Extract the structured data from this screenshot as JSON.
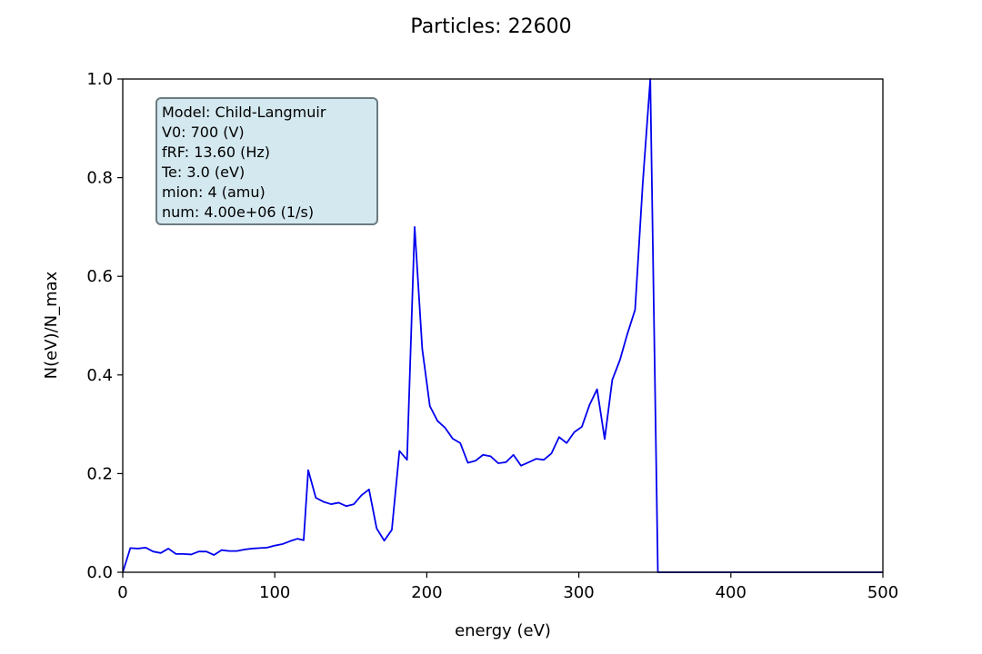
{
  "chart_data": {
    "type": "line",
    "title": "Particles: 22600",
    "xlabel": "energy (eV)",
    "ylabel": "N(eV)/N_max",
    "xlim": [
      0,
      500
    ],
    "ylim": [
      0.0,
      1.0
    ],
    "xticks": [
      0,
      100,
      200,
      300,
      400,
      500
    ],
    "xtick_labels": [
      "0",
      "100",
      "200",
      "300",
      "400",
      "500"
    ],
    "yticks": [
      0.0,
      0.2,
      0.4,
      0.6,
      0.8,
      1.0
    ],
    "ytick_labels": [
      "0.0",
      "0.2",
      "0.4",
      "0.6",
      "0.8",
      "1.0"
    ],
    "grid": false,
    "series": [
      {
        "color": "#0000ee",
        "x": [
          0,
          5,
          10,
          15,
          20,
          25,
          30,
          35,
          40,
          45,
          50,
          55,
          60,
          65,
          70,
          75,
          80,
          85,
          90,
          95,
          100,
          105,
          110,
          115,
          119,
          122,
          127,
          132,
          137,
          142,
          147,
          152,
          157,
          162,
          167,
          172,
          177,
          182,
          187,
          192,
          197,
          202,
          207,
          212,
          217,
          222,
          227,
          232,
          237,
          242,
          247,
          252,
          257,
          262,
          267,
          272,
          277,
          282,
          287,
          292,
          297,
          302,
          307,
          312,
          317,
          322,
          327,
          332,
          337,
          342,
          347,
          352,
          357,
          400,
          450,
          500
        ],
        "y": [
          0.0,
          0.049,
          0.048,
          0.05,
          0.042,
          0.039,
          0.048,
          0.037,
          0.037,
          0.036,
          0.042,
          0.042,
          0.035,
          0.045,
          0.043,
          0.043,
          0.046,
          0.048,
          0.049,
          0.05,
          0.054,
          0.057,
          0.063,
          0.068,
          0.065,
          0.207,
          0.151,
          0.143,
          0.138,
          0.141,
          0.134,
          0.138,
          0.156,
          0.168,
          0.089,
          0.064,
          0.086,
          0.246,
          0.228,
          0.7,
          0.453,
          0.337,
          0.307,
          0.293,
          0.271,
          0.262,
          0.222,
          0.226,
          0.238,
          0.235,
          0.221,
          0.223,
          0.238,
          0.216,
          0.223,
          0.23,
          0.228,
          0.241,
          0.274,
          0.262,
          0.284,
          0.295,
          0.339,
          0.371,
          0.27,
          0.39,
          0.43,
          0.484,
          0.532,
          0.786,
          1.0,
          0.0,
          0.0,
          0.0,
          0.0,
          0.0
        ]
      }
    ],
    "annotation": {
      "lines": [
        "Model: Child-Langmuir",
        "V0: 700 (V)",
        "fRF: 13.60 (Hz)",
        "Te: 3.0 (eV)",
        "mion: 4 (amu)",
        "num: 4.00e+06 (1/s)"
      ],
      "placement": "top-left",
      "background": "#d4e8ef",
      "border": "#6b7b80"
    }
  }
}
